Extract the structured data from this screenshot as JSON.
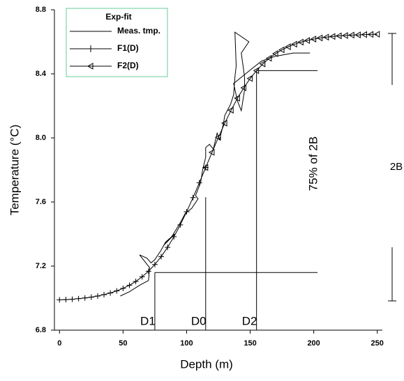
{
  "chart_data": {
    "type": "line",
    "xlabel": "Depth (m)",
    "ylabel": "Temperature (°C)",
    "xlim": [
      -4,
      254
    ],
    "ylim": [
      6.8,
      8.8
    ],
    "xticks": [
      0,
      50,
      100,
      150,
      200,
      250
    ],
    "yticks": [
      6.8,
      7.2,
      7.6,
      {
        "value": 8,
        "label": "8.0"
      },
      8.4,
      8.8
    ],
    "legend": {
      "title": "Exp-fit",
      "position": "upper left"
    },
    "series": [
      {
        "name": "Meas. tmp.",
        "color": "#000000",
        "marker": "none",
        "x": [
          47.8,
          55,
          63,
          70,
          70.9,
          63,
          68.7,
          72,
          75,
          80,
          83.5,
          90.7,
          82,
          88,
          95,
          99,
          104,
          109,
          107,
          111,
          112.6,
          115,
          115,
          118,
          121,
          124,
          126,
          129,
          130,
          134.6,
          137,
          138,
          139,
          138,
          149,
          143,
          145.6,
          145.6,
          143,
          140,
          137,
          151,
          159,
          170,
          184,
          197
        ],
        "values": [
          7.013,
          7.04,
          7.08,
          7.11,
          7.19,
          7.27,
          7.25,
          7.22,
          7.24,
          7.3,
          7.35,
          7.4,
          7.33,
          7.38,
          7.47,
          7.53,
          7.56,
          7.62,
          7.64,
          7.72,
          7.8,
          7.88,
          7.94,
          7.96,
          7.93,
          8.03,
          7.99,
          8.09,
          8.14,
          8.21,
          8.27,
          8.38,
          8.45,
          8.66,
          8.6,
          8.53,
          8.38,
          8.3,
          8.17,
          8.23,
          8.34,
          8.43,
          8.48,
          8.51,
          8.53,
          8.53
        ]
      },
      {
        "name": "F1(D)",
        "color": "#000000",
        "marker": "plus",
        "x": [
          0,
          5,
          10,
          15,
          20,
          25,
          30,
          35,
          40,
          45,
          50,
          55,
          60,
          65,
          70,
          75,
          80,
          85,
          90,
          95,
          100,
          105,
          110,
          115
        ],
        "values": [
          6.989,
          6.991,
          6.993,
          6.997,
          7.001,
          7.006,
          7.013,
          7.022,
          7.032,
          7.045,
          7.061,
          7.08,
          7.104,
          7.133,
          7.168,
          7.21,
          7.259,
          7.317,
          7.383,
          7.457,
          7.539,
          7.627,
          7.72,
          7.815
        ]
      },
      {
        "name": "F2(D)",
        "color": "#000000",
        "marker": "triangle-left",
        "x": [
          115,
          120,
          125,
          130,
          135,
          140,
          145,
          150,
          155,
          160,
          165,
          170,
          175,
          180,
          185,
          190,
          195,
          200,
          205,
          210,
          215,
          220,
          225,
          230,
          235,
          240,
          245,
          250
        ],
        "values": [
          7.815,
          7.91,
          8.003,
          8.092,
          8.173,
          8.248,
          8.313,
          8.371,
          8.42,
          8.462,
          8.497,
          8.526,
          8.55,
          8.569,
          8.585,
          8.598,
          8.608,
          8.617,
          8.624,
          8.629,
          8.633,
          8.637,
          8.639,
          8.642,
          8.643,
          8.645,
          8.646,
          8.647
        ]
      }
    ],
    "markers": [
      {
        "label": "D1",
        "x": 75,
        "y": 7.16,
        "x_end": 203
      },
      {
        "label": "D0",
        "x": 115,
        "y": 7.63
      },
      {
        "label": "D2",
        "x": 155,
        "y": 8.42,
        "x_end": 203
      }
    ],
    "annotations": [
      "75% of 2B",
      "2B"
    ]
  }
}
